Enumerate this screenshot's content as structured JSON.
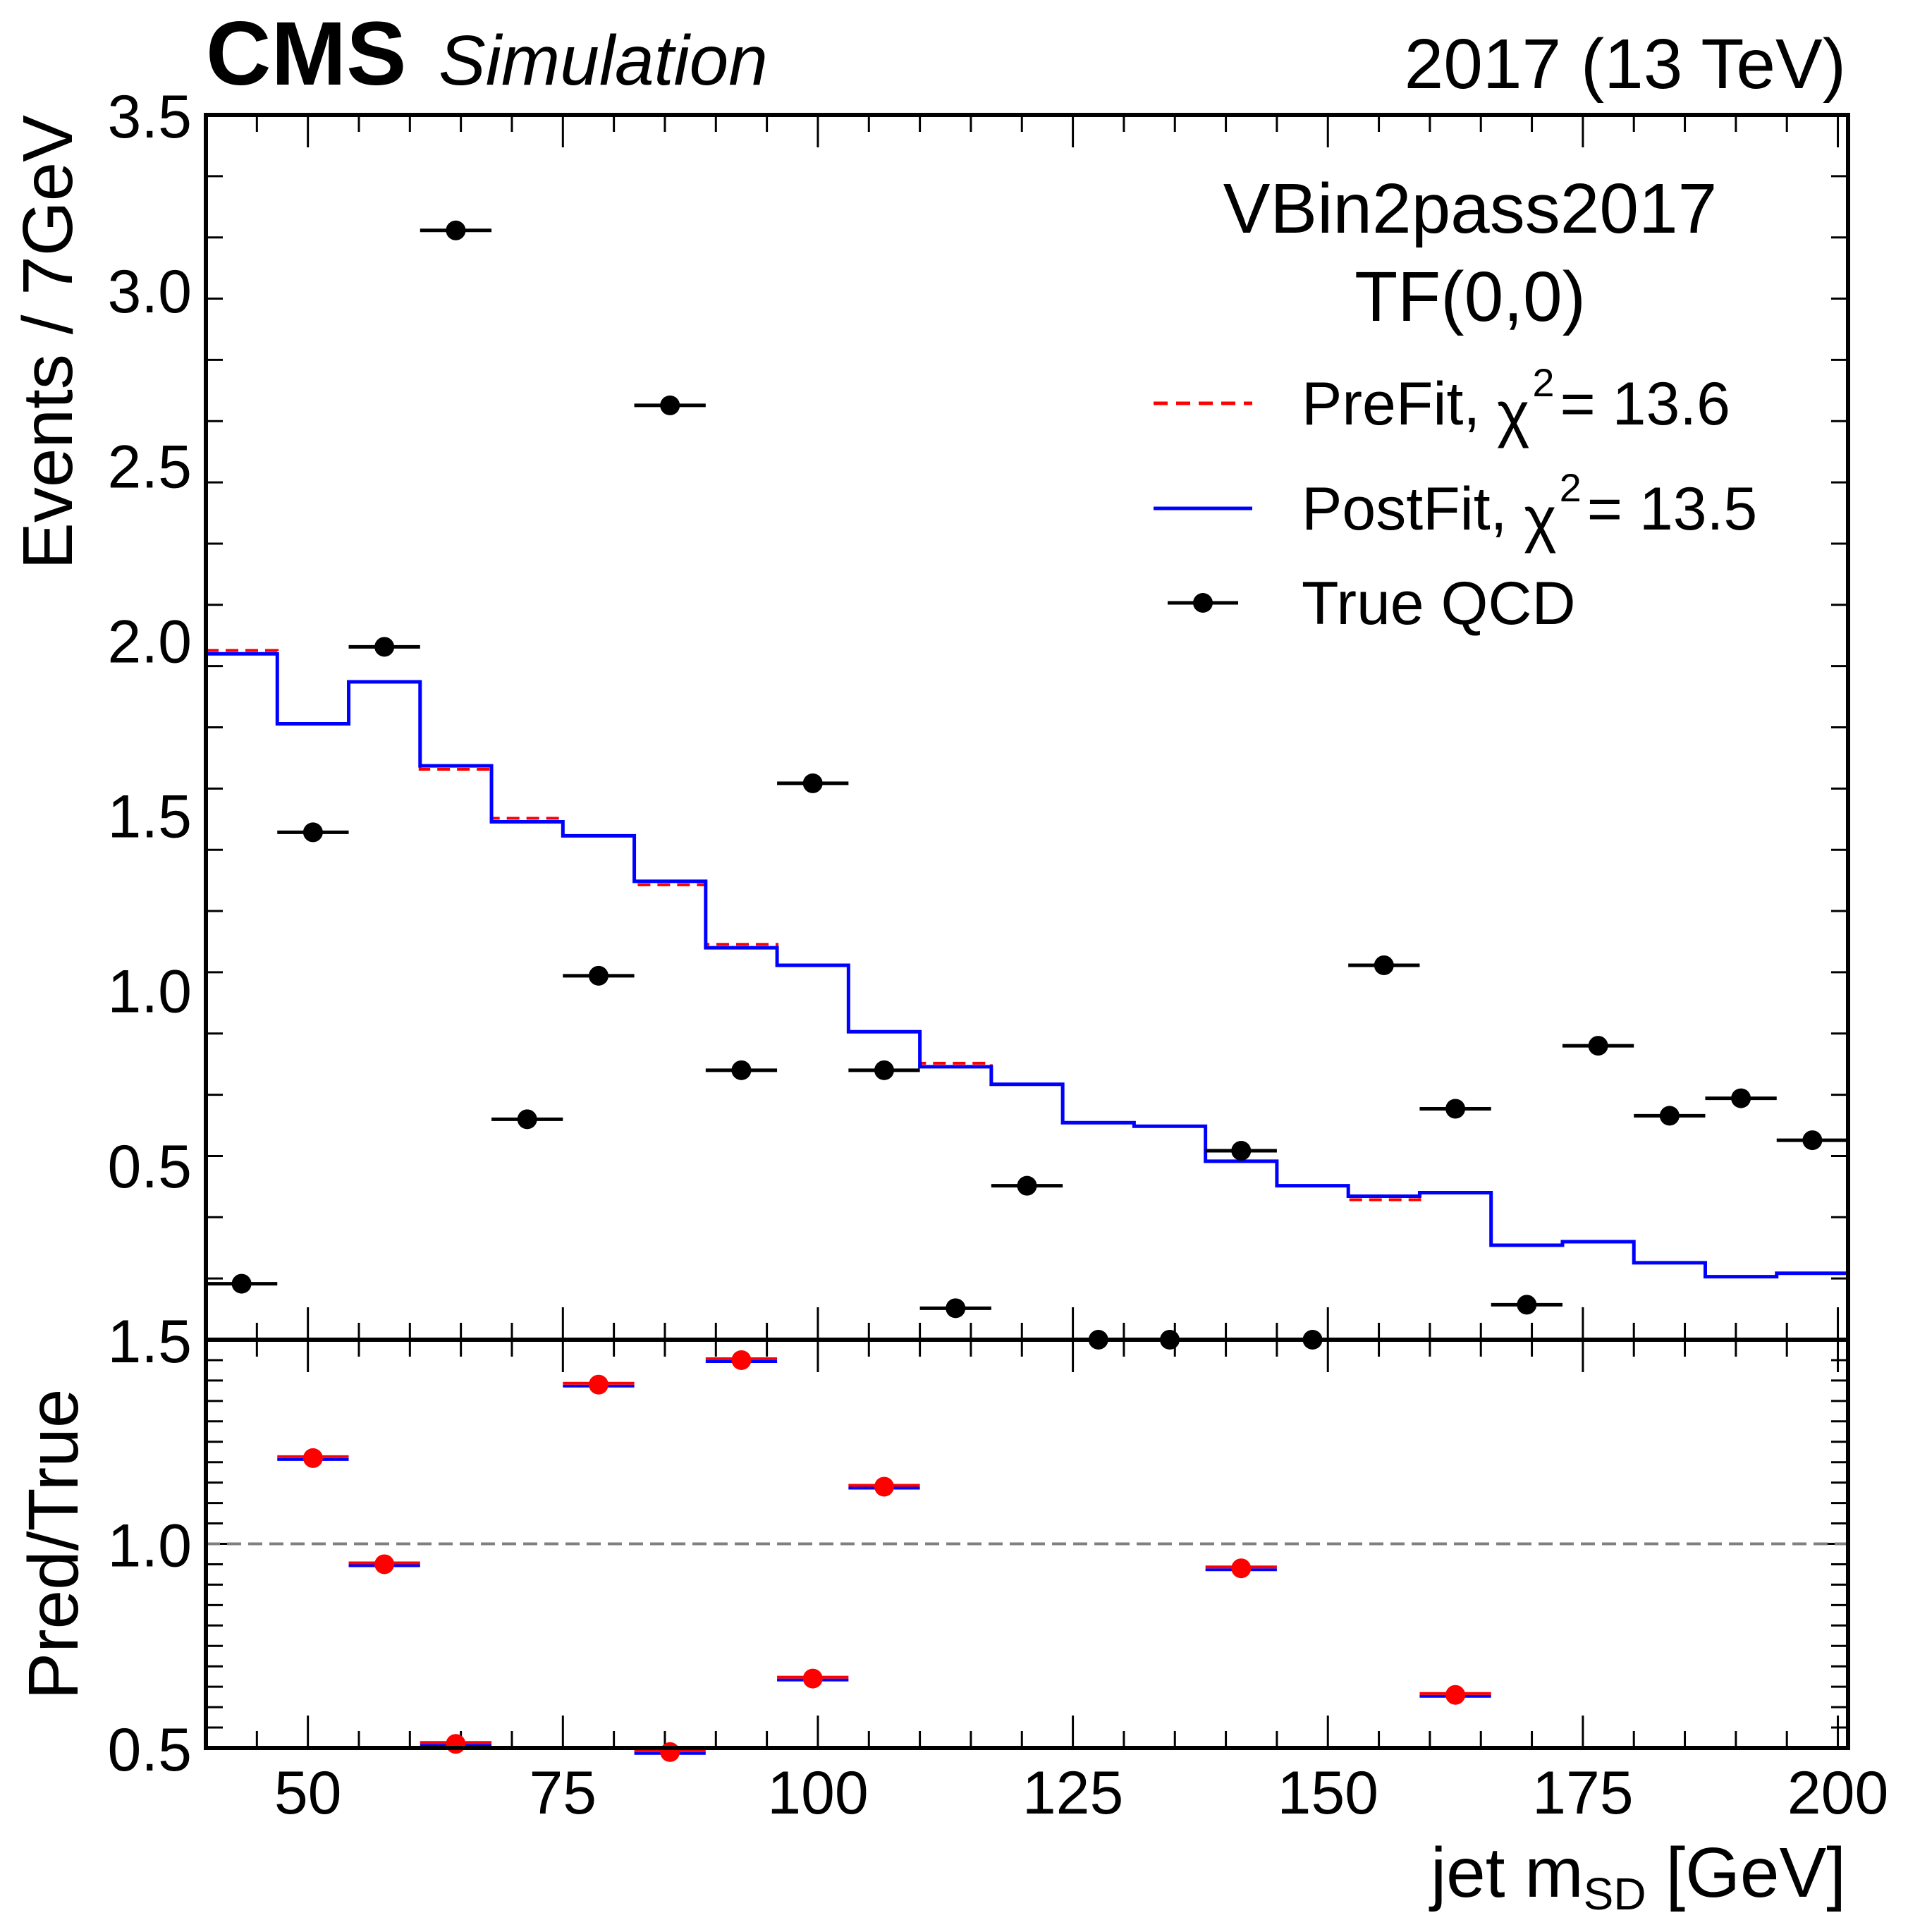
{
  "header": {
    "experiment": "CMS",
    "status": "Simulation",
    "lumi": "2017 (13 TeV)"
  },
  "legend": {
    "title_line1": "VBin2pass2017",
    "title_line2": "TF(0,0)",
    "prefit_label": "PreFit, ",
    "prefit_chi2": "= 13.6",
    "postfit_label": "PostFit, ",
    "postfit_chi2": "= 13.5",
    "chi_symbol": "χ",
    "chi_power": "2",
    "true_label": "True QCD"
  },
  "colors": {
    "prefit": "#ff0000",
    "postfit": "#0000ff",
    "true": "#000000",
    "ratio_marker": "#ff0000",
    "reference_line": "#808080"
  },
  "chart_data": {
    "type": "line",
    "x_bin_edges": [
      40,
      47,
      54,
      61,
      68,
      75,
      82,
      89,
      96,
      103,
      110,
      117,
      124,
      131,
      138,
      145,
      152,
      159,
      166,
      173,
      180,
      187,
      194,
      201
    ],
    "xlim": [
      40,
      201
    ],
    "xticks": [
      50,
      75,
      100,
      125,
      150,
      175,
      200
    ],
    "xlabel_main": "jet m",
    "xlabel_sub": "SD",
    "xlabel_unit": " [GeV]",
    "top": {
      "ylabel": "Events / 7GeV",
      "ylim": [
        0.0,
        3.5
      ],
      "yticks": [
        0.5,
        1.0,
        1.5,
        2.0,
        2.5,
        3.0,
        3.5
      ],
      "ytick_labels": [
        "0.5",
        "1.0",
        "1.5",
        "2.0",
        "2.5",
        "3.0",
        "3.5"
      ],
      "series": [
        {
          "name": "PreFit",
          "style": "dashed",
          "values": [
            1.97,
            1.76,
            1.88,
            1.63,
            1.49,
            1.44,
            1.3,
            1.13,
            1.07,
            0.88,
            0.79,
            0.73,
            0.62,
            0.61,
            0.51,
            0.44,
            0.4,
            0.42,
            0.27,
            0.28,
            0.22,
            0.18,
            0.19
          ]
        },
        {
          "name": "PostFit",
          "style": "solid",
          "values": [
            1.96,
            1.76,
            1.88,
            1.64,
            1.48,
            1.44,
            1.31,
            1.12,
            1.07,
            0.88,
            0.78,
            0.73,
            0.62,
            0.61,
            0.51,
            0.44,
            0.41,
            0.42,
            0.27,
            0.28,
            0.22,
            0.18,
            0.19
          ]
        },
        {
          "name": "True QCD",
          "style": "points",
          "values": [
            0.16,
            1.45,
            1.98,
            3.17,
            0.63,
            1.04,
            2.67,
            0.77,
            1.59,
            0.77,
            0.09,
            0.44,
            0.0,
            0.0,
            0.54,
            0.0,
            1.07,
            0.66,
            0.1,
            0.84,
            0.64,
            0.69,
            0.57
          ]
        }
      ]
    },
    "bottom": {
      "ylabel": "Pred/True",
      "ylim": [
        0.5,
        1.5
      ],
      "yticks": [
        0.5,
        1.0,
        1.5
      ],
      "ytick_labels": [
        "0.5",
        "1.0",
        "1.5"
      ],
      "reference": 1.0,
      "ratio_points": [
        {
          "x": 50.5,
          "y": 1.21
        },
        {
          "x": 57.5,
          "y": 0.95
        },
        {
          "x": 64.5,
          "y": 0.51
        },
        {
          "x": 78.5,
          "y": 1.39
        },
        {
          "x": 85.5,
          "y": 0.49
        },
        {
          "x": 92.5,
          "y": 1.45
        },
        {
          "x": 99.5,
          "y": 0.67
        },
        {
          "x": 106.5,
          "y": 1.14
        },
        {
          "x": 141.5,
          "y": 0.94
        },
        {
          "x": 162.5,
          "y": 0.63
        }
      ]
    }
  }
}
